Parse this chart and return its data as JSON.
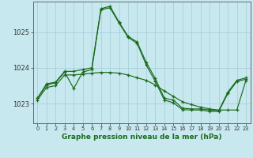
{
  "background_color": "#c8e8f0",
  "grid_color": "#a8d0da",
  "line_color": "#1a6b1a",
  "title": "Graphe pression niveau de la mer (hPa)",
  "hours": [
    0,
    1,
    2,
    3,
    4,
    5,
    6,
    7,
    8,
    9,
    10,
    11,
    12,
    13,
    14,
    15,
    16,
    17,
    18,
    19,
    20,
    21,
    22,
    23
  ],
  "ylim": [
    1022.45,
    1025.85
  ],
  "yticks": [
    1023,
    1024,
    1025
  ],
  "series1": [
    1023.15,
    1023.55,
    1023.6,
    1023.9,
    1023.9,
    1023.95,
    1024.0,
    1025.65,
    1025.72,
    1025.28,
    1024.88,
    1024.72,
    1024.15,
    1023.7,
    1023.15,
    1023.1,
    1022.87,
    1022.85,
    1022.85,
    1022.82,
    1022.8,
    1023.32,
    1023.65,
    1023.72
  ],
  "series2": [
    1023.15,
    1023.52,
    1023.58,
    1023.88,
    1023.42,
    1023.88,
    1023.95,
    1025.62,
    1025.68,
    1025.25,
    1024.85,
    1024.68,
    1024.08,
    1023.62,
    1023.1,
    1023.02,
    1022.83,
    1022.82,
    1022.82,
    1022.78,
    1022.78,
    1023.28,
    1023.62,
    1023.68
  ],
  "series3": [
    1023.1,
    1023.45,
    1023.5,
    1023.8,
    1023.8,
    1023.82,
    1023.85,
    1023.87,
    1023.87,
    1023.85,
    1023.8,
    1023.72,
    1023.65,
    1023.52,
    1023.35,
    1023.2,
    1023.05,
    1022.97,
    1022.9,
    1022.85,
    1022.82,
    1022.82,
    1022.82,
    1023.65
  ]
}
